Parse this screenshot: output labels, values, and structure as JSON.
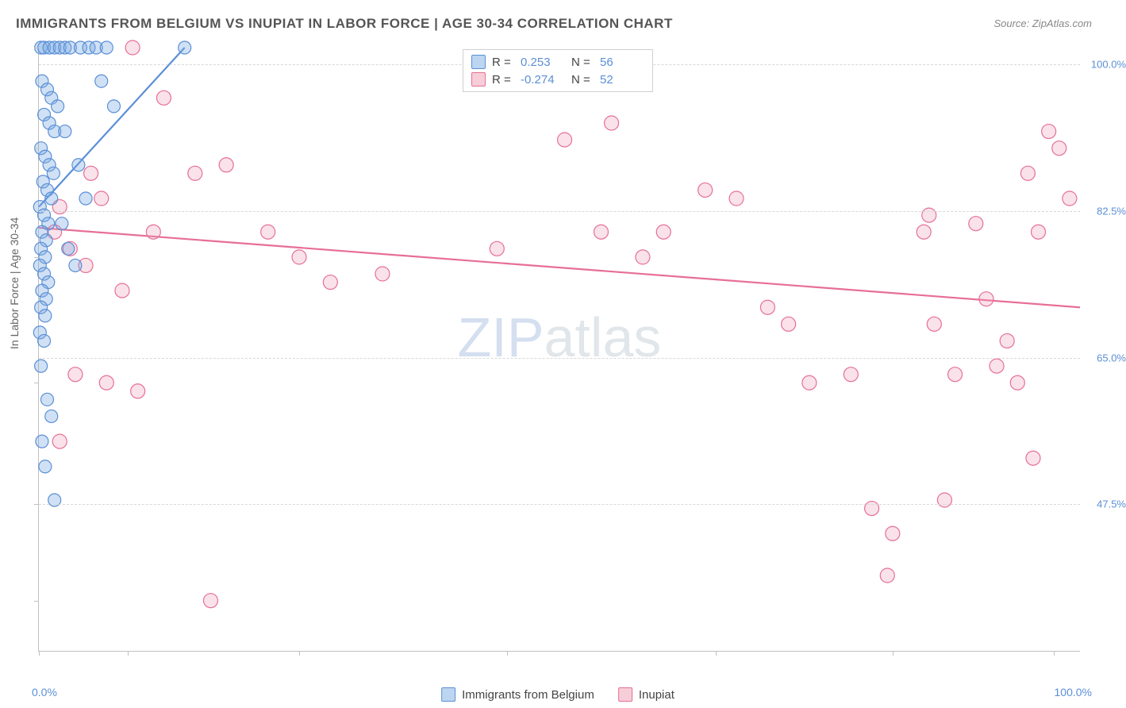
{
  "title": "IMMIGRANTS FROM BELGIUM VS INUPIAT IN LABOR FORCE | AGE 30-34 CORRELATION CHART",
  "source": "Source: ZipAtlas.com",
  "watermark_a": "ZIP",
  "watermark_b": "atlas",
  "yaxis_title": "In Labor Force | Age 30-34",
  "xaxis": {
    "min": 0,
    "max": 100,
    "label_left": "0.0%",
    "label_right": "100.0%",
    "tick_positions": [
      0,
      8.5,
      25,
      45,
      65,
      82,
      97.5
    ]
  },
  "yaxis": {
    "min": 30,
    "max": 102,
    "ticks": [
      {
        "v": 47.5,
        "label": "47.5%"
      },
      {
        "v": 65.0,
        "label": "65.0%"
      },
      {
        "v": 82.5,
        "label": "82.5%"
      },
      {
        "v": 100.0,
        "label": "100.0%"
      }
    ],
    "left_tick_positions": [
      36,
      47.5,
      62,
      77,
      90,
      102
    ]
  },
  "series": [
    {
      "name": "Immigrants from Belgium",
      "color_fill": "rgba(120,170,225,0.35)",
      "color_stroke": "#5b8fd6",
      "swatch_fill": "#bcd5f0",
      "marker_radius": 8,
      "marker_stroke_width": 1.2,
      "R": "0.253",
      "N": "56",
      "trend": {
        "x1": 0,
        "y1": 83,
        "x2": 14,
        "y2": 102,
        "width": 2.2
      },
      "points": [
        [
          0.2,
          102
        ],
        [
          0.5,
          102
        ],
        [
          1.0,
          102
        ],
        [
          1.5,
          102
        ],
        [
          2.0,
          102
        ],
        [
          2.5,
          102
        ],
        [
          3.0,
          102
        ],
        [
          4.0,
          102
        ],
        [
          4.8,
          102
        ],
        [
          5.5,
          102
        ],
        [
          6.5,
          102
        ],
        [
          0.3,
          98
        ],
        [
          0.8,
          97
        ],
        [
          1.2,
          96
        ],
        [
          1.8,
          95
        ],
        [
          0.5,
          94
        ],
        [
          1.0,
          93
        ],
        [
          1.5,
          92
        ],
        [
          0.2,
          90
        ],
        [
          0.6,
          89
        ],
        [
          1.0,
          88
        ],
        [
          1.4,
          87
        ],
        [
          0.4,
          86
        ],
        [
          0.8,
          85
        ],
        [
          1.2,
          84
        ],
        [
          0.1,
          83
        ],
        [
          0.5,
          82
        ],
        [
          0.9,
          81
        ],
        [
          0.3,
          80
        ],
        [
          0.7,
          79
        ],
        [
          0.2,
          78
        ],
        [
          0.6,
          77
        ],
        [
          0.1,
          76
        ],
        [
          0.5,
          75
        ],
        [
          0.9,
          74
        ],
        [
          0.3,
          73
        ],
        [
          0.7,
          72
        ],
        [
          0.2,
          71
        ],
        [
          0.6,
          70
        ],
        [
          0.1,
          68
        ],
        [
          2.2,
          81
        ],
        [
          2.8,
          78
        ],
        [
          3.5,
          76
        ],
        [
          0.5,
          67
        ],
        [
          0.2,
          64
        ],
        [
          0.8,
          60
        ],
        [
          1.2,
          58
        ],
        [
          0.3,
          55
        ],
        [
          0.6,
          52
        ],
        [
          6.0,
          98
        ],
        [
          7.2,
          95
        ],
        [
          14.0,
          102
        ],
        [
          3.8,
          88
        ],
        [
          4.5,
          84
        ],
        [
          1.5,
          48
        ],
        [
          2.5,
          92
        ]
      ]
    },
    {
      "name": "Inupiat",
      "color_fill": "rgba(240,160,185,0.30)",
      "color_stroke": "#e76f95",
      "swatch_fill": "#f6cdd9",
      "marker_radius": 9,
      "marker_stroke_width": 1.2,
      "R": "-0.274",
      "N": "52",
      "trend": {
        "x1": 0,
        "y1": 80.5,
        "x2": 100,
        "y2": 71,
        "width": 2.2
      },
      "points": [
        [
          9.0,
          102
        ],
        [
          1.5,
          80
        ],
        [
          3.0,
          78
        ],
        [
          2.0,
          83
        ],
        [
          4.5,
          76
        ],
        [
          6.0,
          84
        ],
        [
          8.0,
          73
        ],
        [
          3.5,
          63
        ],
        [
          6.5,
          62
        ],
        [
          9.5,
          61
        ],
        [
          2.0,
          55
        ],
        [
          12.0,
          96
        ],
        [
          15.0,
          87
        ],
        [
          18.0,
          88
        ],
        [
          22.0,
          80
        ],
        [
          25.0,
          77
        ],
        [
          33.0,
          75
        ],
        [
          16.5,
          36
        ],
        [
          50.5,
          91
        ],
        [
          55.0,
          93
        ],
        [
          54.0,
          80
        ],
        [
          58.0,
          77
        ],
        [
          64.0,
          85
        ],
        [
          67.0,
          84
        ],
        [
          70.0,
          71
        ],
        [
          72.0,
          69
        ],
        [
          74.0,
          62
        ],
        [
          78.0,
          63
        ],
        [
          80.0,
          47
        ],
        [
          82.0,
          44
        ],
        [
          81.5,
          39
        ],
        [
          85.0,
          80
        ],
        [
          86.0,
          69
        ],
        [
          87.0,
          48
        ],
        [
          88.0,
          63
        ],
        [
          90.0,
          81
        ],
        [
          91.0,
          72
        ],
        [
          92.0,
          64
        ],
        [
          93.0,
          67
        ],
        [
          94.0,
          62
        ],
        [
          95.0,
          87
        ],
        [
          96.0,
          80
        ],
        [
          97.0,
          92
        ],
        [
          98.0,
          90
        ],
        [
          99.0,
          84
        ],
        [
          95.5,
          53
        ],
        [
          85.5,
          82
        ],
        [
          60.0,
          80
        ],
        [
          44.0,
          78
        ],
        [
          28.0,
          74
        ],
        [
          11.0,
          80
        ],
        [
          5.0,
          87
        ]
      ]
    }
  ],
  "legend_top_labels": {
    "R": "R =",
    "N": "N ="
  },
  "legend_bottom": [
    {
      "series": 0
    },
    {
      "series": 1
    }
  ]
}
